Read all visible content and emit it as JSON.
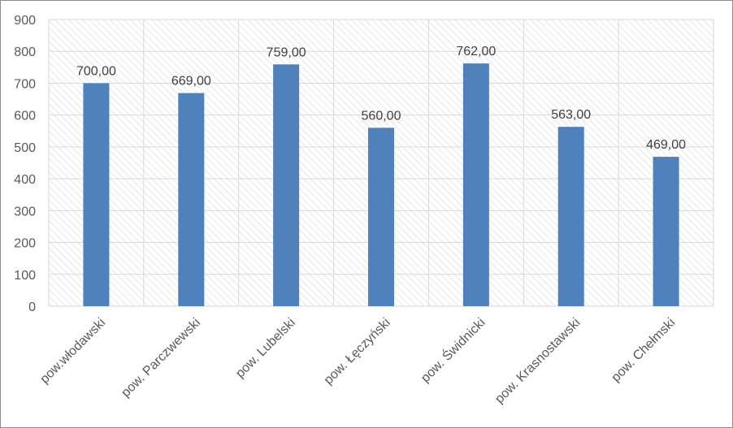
{
  "chart_data": {
    "type": "bar",
    "title": "",
    "xlabel": "",
    "ylabel": "",
    "categories": [
      "pow.włodawski",
      "pow. Parczwewski",
      "pow. Lubelski",
      "pow. Łęczyński",
      "pow. Świdnicki",
      "pow. Krasnostawski",
      "pow. Chełmski"
    ],
    "values": [
      700,
      669,
      759,
      560,
      762,
      563,
      469
    ],
    "data_labels": [
      "700,00",
      "669,00",
      "759,00",
      "560,00",
      "762,00",
      "563,00",
      "469,00"
    ],
    "ylim": [
      0,
      900
    ],
    "yticks": [
      "0",
      "100",
      "200",
      "300",
      "400",
      "500",
      "600",
      "700",
      "800",
      "900"
    ],
    "grid": true,
    "legend": "none",
    "colors": {
      "bar": "#4f81bd",
      "grid": "#d9d9d9",
      "plot_background_hatch": "#e6e6e6",
      "axis_text": "#595959",
      "border": "#8c8c8c"
    }
  }
}
